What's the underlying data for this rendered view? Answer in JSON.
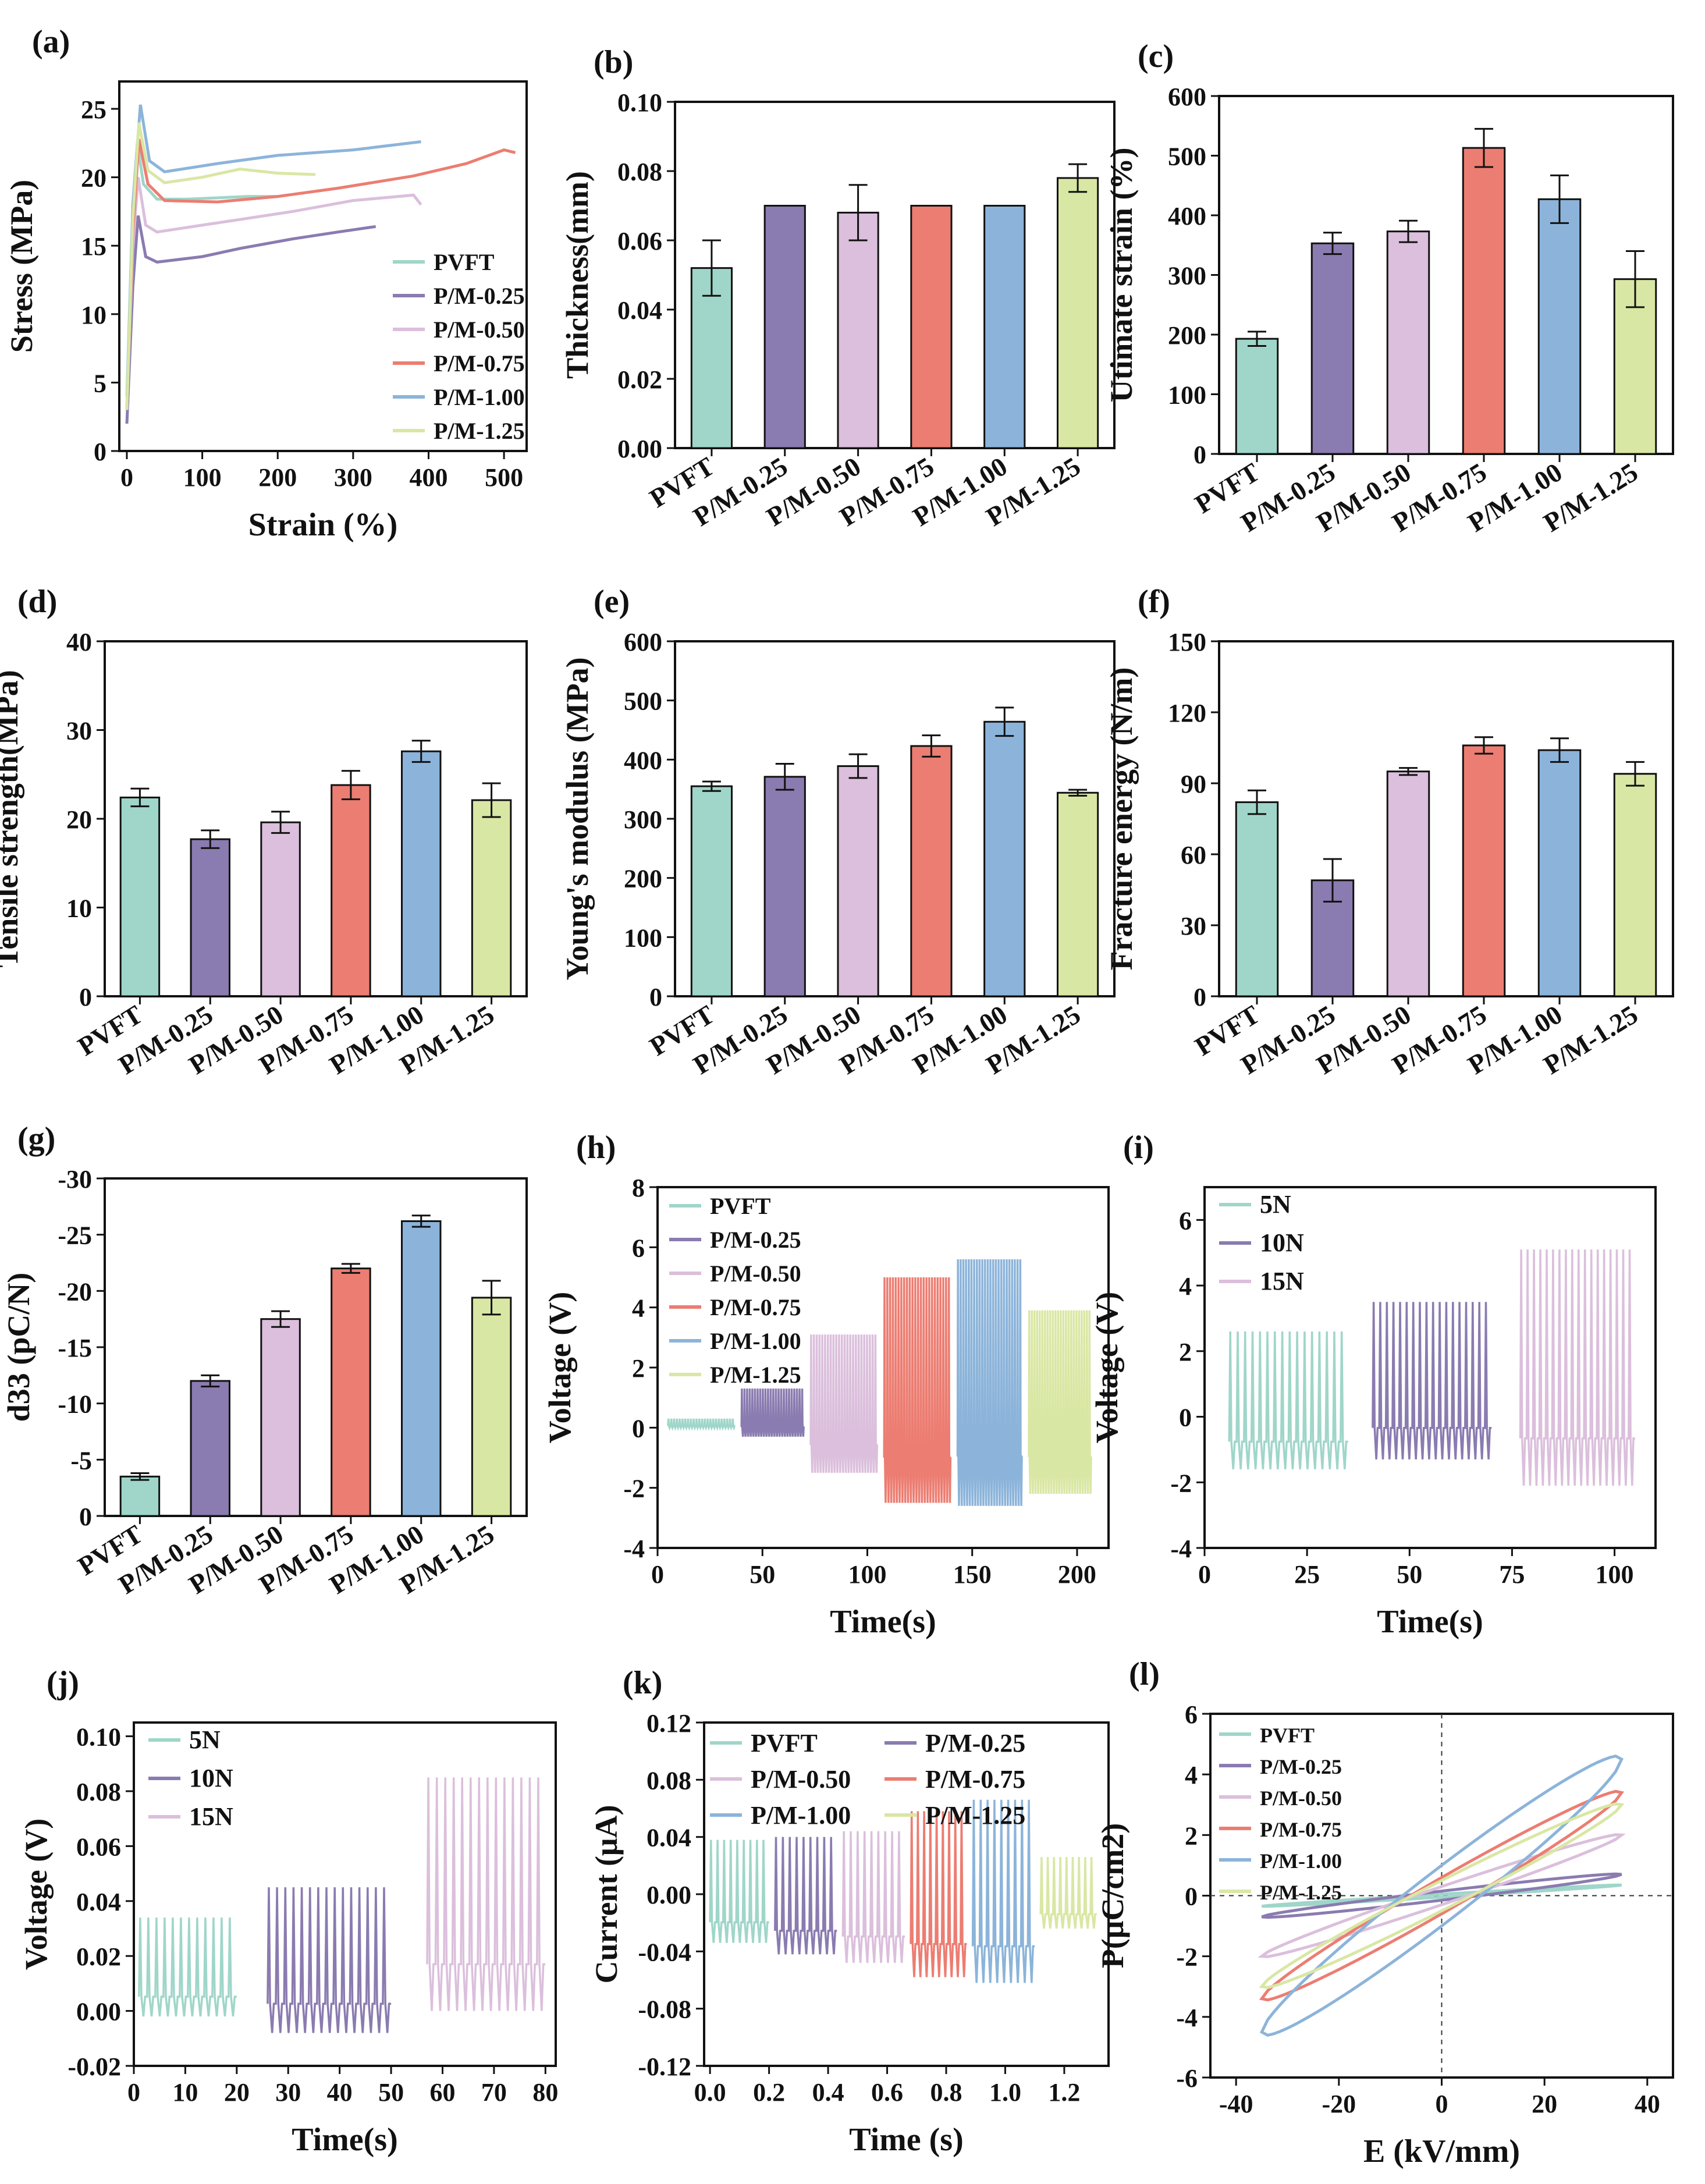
{
  "colors": {
    "PVFT": "#9fd6c9",
    "P/M-0.25": "#8a7bb0",
    "P/M-0.50": "#dbbfdc",
    "P/M-0.75": "#ec7d72",
    "P/M-1.00": "#8cb4da",
    "P/M-1.25": "#d9e7a4",
    "5N": "#9fd6c9",
    "10N": "#8a7bb0",
    "15N": "#dbbfdc"
  },
  "chart_data": [
    {
      "id": "a",
      "panel_label": "(a)",
      "type": "line",
      "xlabel": "Strain (%)",
      "ylabel": "Stress (MPa)",
      "xlim": [
        -10,
        530
      ],
      "ylim": [
        0,
        27
      ],
      "xticks": [
        0,
        100,
        200,
        300,
        400,
        500
      ],
      "yticks": [
        0,
        5,
        10,
        15,
        20,
        25
      ],
      "legend": "bottom-right",
      "series": [
        {
          "name": "PVFT",
          "points": [
            [
              0,
              4
            ],
            [
              8,
              18
            ],
            [
              14,
              22.5
            ],
            [
              22,
              19.5
            ],
            [
              40,
              18.4
            ],
            [
              80,
              18.4
            ],
            [
              160,
              18.6
            ],
            [
              200,
              18.6
            ]
          ]
        },
        {
          "name": "P/M-0.25",
          "points": [
            [
              0,
              2
            ],
            [
              8,
              12
            ],
            [
              15,
              17.2
            ],
            [
              25,
              14.2
            ],
            [
              40,
              13.8
            ],
            [
              100,
              14.2
            ],
            [
              150,
              14.8
            ],
            [
              220,
              15.5
            ],
            [
              280,
              16
            ],
            [
              330,
              16.4
            ]
          ]
        },
        {
          "name": "P/M-0.50",
          "points": [
            [
              0,
              3
            ],
            [
              8,
              15
            ],
            [
              15,
              20
            ],
            [
              25,
              16.5
            ],
            [
              40,
              16
            ],
            [
              100,
              16.5
            ],
            [
              160,
              17
            ],
            [
              220,
              17.5
            ],
            [
              300,
              18.3
            ],
            [
              380,
              18.7
            ],
            [
              390,
              18
            ]
          ]
        },
        {
          "name": "P/M-0.75",
          "points": [
            [
              0,
              3
            ],
            [
              8,
              16
            ],
            [
              16,
              22.8
            ],
            [
              28,
              19.5
            ],
            [
              50,
              18.3
            ],
            [
              120,
              18.2
            ],
            [
              200,
              18.6
            ],
            [
              280,
              19.2
            ],
            [
              380,
              20.1
            ],
            [
              450,
              21
            ],
            [
              500,
              22
            ],
            [
              515,
              21.8
            ]
          ]
        },
        {
          "name": "P/M-1.00",
          "points": [
            [
              0,
              3
            ],
            [
              8,
              18
            ],
            [
              18,
              25.3
            ],
            [
              30,
              21.2
            ],
            [
              50,
              20.4
            ],
            [
              120,
              21
            ],
            [
              200,
              21.6
            ],
            [
              300,
              22
            ],
            [
              390,
              22.6
            ]
          ]
        },
        {
          "name": "P/M-1.25",
          "points": [
            [
              0,
              3
            ],
            [
              8,
              17
            ],
            [
              16,
              24
            ],
            [
              28,
              20.5
            ],
            [
              50,
              19.6
            ],
            [
              100,
              20
            ],
            [
              150,
              20.6
            ],
            [
              200,
              20.3
            ],
            [
              250,
              20.2
            ]
          ]
        }
      ]
    },
    {
      "id": "b",
      "panel_label": "(b)",
      "type": "bar",
      "ylabel": "Thickness(mm)",
      "ylim": [
        0,
        0.1
      ],
      "yticks": [
        0.0,
        0.02,
        0.04,
        0.06,
        0.08,
        0.1
      ],
      "ytick_labels": [
        "0.00",
        "0.02",
        "0.04",
        "0.06",
        "0.08",
        "0.10"
      ],
      "categories": [
        "PVFT",
        "P/M-0.25",
        "P/M-0.50",
        "P/M-0.75",
        "P/M-1.00",
        "P/M-1.25"
      ],
      "values": [
        0.052,
        0.07,
        0.068,
        0.07,
        0.07,
        0.078
      ],
      "errors": [
        0.008,
        0,
        0.008,
        0,
        0,
        0.004
      ]
    },
    {
      "id": "c",
      "panel_label": "(c)",
      "type": "bar",
      "ylabel": "Utimate strain (%)",
      "ylim": [
        0,
        600
      ],
      "yticks": [
        0,
        100,
        200,
        300,
        400,
        500,
        600
      ],
      "categories": [
        "PVFT",
        "P/M-0.25",
        "P/M-0.50",
        "P/M-0.75",
        "P/M-1.00",
        "P/M-1.25"
      ],
      "values": [
        193,
        353,
        373,
        513,
        427,
        293
      ],
      "errors": [
        12,
        18,
        18,
        32,
        40,
        47
      ]
    },
    {
      "id": "d",
      "panel_label": "(d)",
      "type": "bar",
      "ylabel": "Tensile strength(MPa)",
      "ylim": [
        0,
        40
      ],
      "yticks": [
        0,
        10,
        20,
        30,
        40
      ],
      "categories": [
        "PVFT",
        "P/M-0.25",
        "P/M-0.50",
        "P/M-0.75",
        "P/M-1.00",
        "P/M-1.25"
      ],
      "values": [
        22.4,
        17.7,
        19.6,
        23.8,
        27.6,
        22.1
      ],
      "errors": [
        1.0,
        1.0,
        1.2,
        1.6,
        1.2,
        1.9
      ]
    },
    {
      "id": "e",
      "panel_label": "(e)",
      "type": "bar",
      "ylabel": "Young's modulus (MPa)",
      "ylim": [
        0,
        600
      ],
      "yticks": [
        0,
        100,
        200,
        300,
        400,
        500,
        600
      ],
      "categories": [
        "PVFT",
        "P/M-0.25",
        "P/M-0.50",
        "P/M-0.75",
        "P/M-1.00",
        "P/M-1.25"
      ],
      "values": [
        355,
        371,
        389,
        423,
        464,
        344
      ],
      "errors": [
        8,
        22,
        20,
        18,
        24,
        5
      ]
    },
    {
      "id": "f",
      "panel_label": "(f)",
      "type": "bar",
      "ylabel": "Fracture energy (N/m)",
      "ylim": [
        0,
        150
      ],
      "yticks": [
        0,
        30,
        60,
        90,
        120,
        150
      ],
      "categories": [
        "PVFT",
        "P/M-0.25",
        "P/M-0.50",
        "P/M-0.75",
        "P/M-1.00",
        "P/M-1.25"
      ],
      "values": [
        82,
        49,
        95,
        106,
        104,
        94
      ],
      "errors": [
        5,
        9,
        1.5,
        3.5,
        5,
        5
      ]
    },
    {
      "id": "g",
      "panel_label": "(g)",
      "type": "bar",
      "ylabel": "d33 (pC/N)",
      "ylim": [
        0,
        -30
      ],
      "yaxis_reversed": true,
      "yticks": [
        0,
        -5,
        -10,
        -15,
        -20,
        -25,
        -30
      ],
      "categories": [
        "PVFT",
        "P/M-0.25",
        "P/M-0.50",
        "P/M-0.75",
        "P/M-1.00",
        "P/M-1.25"
      ],
      "values": [
        -3.5,
        -12.0,
        -17.5,
        -22.0,
        -26.2,
        -19.4
      ],
      "errors": [
        0.3,
        0.5,
        0.7,
        0.4,
        0.5,
        1.5
      ]
    },
    {
      "id": "h",
      "panel_label": "(h)",
      "type": "line",
      "subtype": "signal-blocks",
      "xlabel": "Time(s)",
      "ylabel": "Voltage (V)",
      "xlim": [
        0,
        215
      ],
      "ylim": [
        -4,
        8
      ],
      "xticks": [
        0,
        50,
        100,
        150,
        200
      ],
      "yticks": [
        -4,
        -2,
        0,
        2,
        4,
        6,
        8
      ],
      "legend": "top-left",
      "series": [
        {
          "name": "PVFT",
          "t_start": 5,
          "t_end": 37,
          "high": 0.3,
          "low": 0.0,
          "peaks": 24
        },
        {
          "name": "P/M-0.25",
          "t_start": 40,
          "t_end": 70,
          "high": 1.3,
          "low": -0.3,
          "peaks": 24
        },
        {
          "name": "P/M-0.50",
          "t_start": 73,
          "t_end": 105,
          "high": 3.1,
          "low": -1.5,
          "peaks": 24
        },
        {
          "name": "P/M-0.75",
          "t_start": 108,
          "t_end": 140,
          "high": 5.0,
          "low": -2.5,
          "peaks": 24
        },
        {
          "name": "P/M-1.00",
          "t_start": 143,
          "t_end": 174,
          "high": 5.6,
          "low": -2.6,
          "peaks": 24
        },
        {
          "name": "P/M-1.25",
          "t_start": 177,
          "t_end": 207,
          "high": 3.9,
          "low": -2.2,
          "peaks": 24
        }
      ]
    },
    {
      "id": "i",
      "panel_label": "(i)",
      "type": "line",
      "subtype": "signal-blocks",
      "xlabel": "Time(s)",
      "ylabel": "Voltage (V)",
      "xlim": [
        0,
        110
      ],
      "ylim": [
        -4,
        7
      ],
      "xticks": [
        0,
        25,
        50,
        75,
        100
      ],
      "yticks": [
        -4,
        -2,
        0,
        2,
        4,
        6
      ],
      "legend": "top-left",
      "series": [
        {
          "name": "5N",
          "t_start": 6,
          "t_end": 35,
          "high": 2.6,
          "low": -1.6,
          "peaks": 16
        },
        {
          "name": "10N",
          "t_start": 41,
          "t_end": 70,
          "high": 3.5,
          "low": -1.3,
          "peaks": 18
        },
        {
          "name": "15N",
          "t_start": 77,
          "t_end": 105,
          "high": 5.1,
          "low": -2.1,
          "peaks": 18
        }
      ]
    },
    {
      "id": "j",
      "panel_label": "(j)",
      "type": "line",
      "subtype": "signal-blocks",
      "xlabel": "Time(s)",
      "ylabel": "Voltage (V)",
      "xlim": [
        0,
        82
      ],
      "ylim": [
        -0.02,
        0.105
      ],
      "xticks": [
        0,
        10,
        20,
        30,
        40,
        50,
        60,
        70,
        80
      ],
      "yticks": [
        -0.02,
        0.0,
        0.02,
        0.04,
        0.06,
        0.08,
        0.1
      ],
      "ytick_labels": [
        "-0.02",
        "0.00",
        "0.02",
        "0.04",
        "0.06",
        "0.08",
        "0.10"
      ],
      "legend": "top-left",
      "series": [
        {
          "name": "5N",
          "t_start": 1,
          "t_end": 20,
          "high": 0.034,
          "low": -0.002,
          "peaks": 12
        },
        {
          "name": "10N",
          "t_start": 26,
          "t_end": 50,
          "high": 0.045,
          "low": -0.008,
          "peaks": 15
        },
        {
          "name": "15N",
          "t_start": 57,
          "t_end": 80,
          "high": 0.085,
          "low": 0.0,
          "peaks": 14
        }
      ]
    },
    {
      "id": "k",
      "panel_label": "(k)",
      "type": "line",
      "subtype": "signal-blocks",
      "xlabel": "Time (s)",
      "ylabel": "Current (μA)",
      "xlim": [
        -0.02,
        1.35
      ],
      "ylim": [
        -0.12,
        0.12
      ],
      "xticks": [
        0.0,
        0.2,
        0.4,
        0.6,
        0.8,
        1.0,
        1.2
      ],
      "xtick_labels": [
        "0.0",
        "0.2",
        "0.4",
        "0.6",
        "0.8",
        "1.0",
        "1.2"
      ],
      "yticks": [
        -0.12,
        -0.08,
        -0.04,
        0.0,
        0.04,
        0.08,
        0.12
      ],
      "ytick_labels": [
        "-0.12",
        "-0.08",
        "-0.04",
        "0.00",
        "0.04",
        "0.08",
        "0.12"
      ],
      "legend": "top (2 columns)",
      "series": [
        {
          "name": "PVFT",
          "t_start": 0.0,
          "t_end": 0.2,
          "high": 0.038,
          "low": -0.034,
          "peaks": 9
        },
        {
          "name": "P/M-0.25",
          "t_start": 0.22,
          "t_end": 0.43,
          "high": 0.04,
          "low": -0.042,
          "peaks": 9
        },
        {
          "name": "P/M-0.50",
          "t_start": 0.45,
          "t_end": 0.66,
          "high": 0.044,
          "low": -0.048,
          "peaks": 9
        },
        {
          "name": "P/M-0.75",
          "t_start": 0.68,
          "t_end": 0.87,
          "high": 0.058,
          "low": -0.058,
          "peaks": 9
        },
        {
          "name": "P/M-1.00",
          "t_start": 0.89,
          "t_end": 1.1,
          "high": 0.066,
          "low": -0.062,
          "peaks": 9
        },
        {
          "name": "P/M-1.25",
          "t_start": 1.12,
          "t_end": 1.31,
          "high": 0.026,
          "low": -0.024,
          "peaks": 9
        }
      ]
    },
    {
      "id": "l",
      "panel_label": "(l)",
      "type": "line",
      "subtype": "hysteresis",
      "xlabel": "E (kV/mm)",
      "ylabel": "P(μC/cm2)",
      "xlim": [
        -45,
        45
      ],
      "ylim": [
        -6,
        6
      ],
      "xticks": [
        -40,
        -20,
        0,
        20,
        40
      ],
      "yticks": [
        -6,
        -4,
        -2,
        0,
        2,
        4,
        6
      ],
      "legend": "top-left",
      "series": [
        {
          "name": "PVFT",
          "emax": 35,
          "pmax": 0.35,
          "pr": 0.05
        },
        {
          "name": "P/M-0.25",
          "emax": 35,
          "pmax": 0.7,
          "pr": 0.15
        },
        {
          "name": "P/M-0.50",
          "emax": 35,
          "pmax": 2.0,
          "pr": 0.3
        },
        {
          "name": "P/M-0.75",
          "emax": 35,
          "pmax": 3.4,
          "pr": 0.6
        },
        {
          "name": "P/M-1.00",
          "emax": 35,
          "pmax": 4.5,
          "pr": 1.0
        },
        {
          "name": "P/M-1.25",
          "emax": 35,
          "pmax": 3.0,
          "pr": 0.5
        }
      ]
    }
  ]
}
